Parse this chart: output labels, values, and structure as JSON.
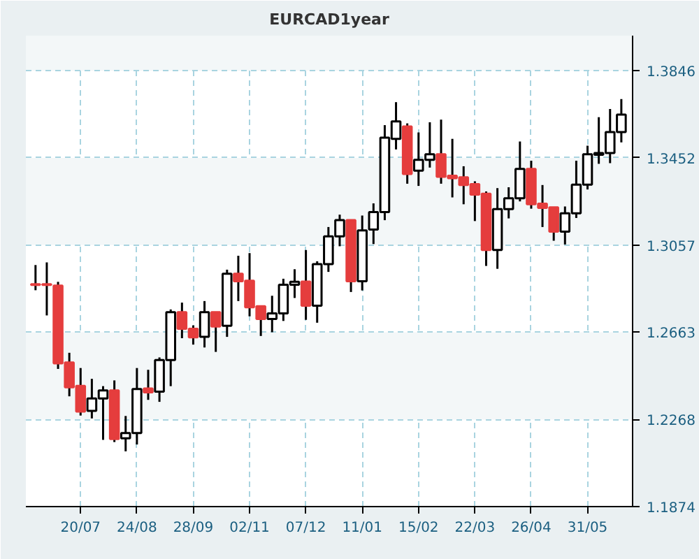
{
  "chart_data": {
    "type": "candlestick",
    "title": "EURCAD1year",
    "x": [
      "2009-06-22",
      "2009-06-29",
      "2009-07-06",
      "2009-07-13",
      "2009-07-20",
      "2009-07-27",
      "2009-08-03",
      "2009-08-10",
      "2009-08-17",
      "2009-08-24",
      "2009-08-31",
      "2009-09-07",
      "2009-09-14",
      "2009-09-21",
      "2009-09-28",
      "2009-10-05",
      "2009-10-12",
      "2009-10-19",
      "2009-10-26",
      "2009-11-02",
      "2009-11-09",
      "2009-11-16",
      "2009-11-23",
      "2009-11-30",
      "2009-12-07",
      "2009-12-14",
      "2009-12-21",
      "2009-12-28",
      "2010-01-04",
      "2010-01-11",
      "2010-01-18",
      "2010-01-25",
      "2010-02-01",
      "2010-02-08",
      "2010-02-15",
      "2010-02-22",
      "2010-03-01",
      "2010-03-08",
      "2010-03-15",
      "2010-03-22",
      "2010-03-29",
      "2010-04-05",
      "2010-04-12",
      "2010-04-19",
      "2010-04-26",
      "2010-05-03",
      "2010-05-10",
      "2010-05-17",
      "2010-05-24",
      "2010-05-31",
      "2010-06-07",
      "2010-06-14",
      "2010-06-21"
    ],
    "ohlc": [
      [
        1.288,
        1.2967,
        1.2853,
        1.2877
      ],
      [
        1.288,
        1.2979,
        1.2739,
        1.2877
      ],
      [
        1.2874,
        1.2891,
        1.2497,
        1.2522
      ],
      [
        1.2526,
        1.257,
        1.2373,
        1.2414
      ],
      [
        1.242,
        1.2501,
        1.2286,
        1.2304
      ],
      [
        1.2307,
        1.2452,
        1.2273,
        1.2363
      ],
      [
        1.2363,
        1.2419,
        1.2176,
        1.24
      ],
      [
        1.24,
        1.2445,
        1.2166,
        1.218
      ],
      [
        1.2183,
        1.2284,
        1.2124,
        1.2207
      ],
      [
        1.2207,
        1.2501,
        1.2155,
        1.2406
      ],
      [
        1.2408,
        1.2493,
        1.2357,
        1.2391
      ],
      [
        1.2394,
        1.2549,
        1.2348,
        1.2537
      ],
      [
        1.2537,
        1.2766,
        1.2419,
        1.2754
      ],
      [
        1.2754,
        1.2797,
        1.2636,
        1.2679
      ],
      [
        1.2679,
        1.2694,
        1.2607,
        1.264
      ],
      [
        1.2642,
        1.2804,
        1.2594,
        1.2754
      ],
      [
        1.2754,
        1.2754,
        1.2574,
        1.2689
      ],
      [
        1.2692,
        1.2946,
        1.2642,
        1.2928
      ],
      [
        1.2928,
        1.3009,
        1.2804,
        1.2894
      ],
      [
        1.2896,
        1.3021,
        1.2735,
        1.2776
      ],
      [
        1.2781,
        1.2781,
        1.2646,
        1.2723
      ],
      [
        1.2723,
        1.2828,
        1.2663,
        1.2748
      ],
      [
        1.2748,
        1.2905,
        1.2714,
        1.2878
      ],
      [
        1.2878,
        1.2948,
        1.2818,
        1.2891
      ],
      [
        1.2892,
        1.3035,
        1.2719,
        1.2783
      ],
      [
        1.2783,
        1.2984,
        1.2706,
        1.2971
      ],
      [
        1.2971,
        1.3139,
        1.2936,
        1.3097
      ],
      [
        1.3097,
        1.3195,
        1.3052,
        1.317
      ],
      [
        1.317,
        1.317,
        1.2845,
        1.2894
      ],
      [
        1.2894,
        1.3191,
        1.2852,
        1.3124
      ],
      [
        1.3128,
        1.3246,
        1.3062,
        1.3207
      ],
      [
        1.3207,
        1.36,
        1.317,
        1.3543
      ],
      [
        1.3538,
        1.3704,
        1.349,
        1.3617
      ],
      [
        1.3594,
        1.3608,
        1.3335,
        1.3379
      ],
      [
        1.3394,
        1.3567,
        1.3325,
        1.3443
      ],
      [
        1.3443,
        1.3613,
        1.3408,
        1.3468
      ],
      [
        1.3468,
        1.3625,
        1.3335,
        1.3366
      ],
      [
        1.3371,
        1.3538,
        1.3273,
        1.336
      ],
      [
        1.3364,
        1.3414,
        1.3242,
        1.3329
      ],
      [
        1.3333,
        1.3346,
        1.3166,
        1.3286
      ],
      [
        1.329,
        1.33,
        1.2963,
        1.3035
      ],
      [
        1.3035,
        1.3315,
        1.295,
        1.322
      ],
      [
        1.322,
        1.3319,
        1.3178,
        1.3269
      ],
      [
        1.3269,
        1.3526,
        1.3255,
        1.3402
      ],
      [
        1.3402,
        1.3439,
        1.3222,
        1.3242
      ],
      [
        1.3245,
        1.3329,
        1.3139,
        1.3226
      ],
      [
        1.3228,
        1.3228,
        1.3077,
        1.3118
      ],
      [
        1.3118,
        1.3232,
        1.306,
        1.3201
      ],
      [
        1.3201,
        1.3439,
        1.318,
        1.3331
      ],
      [
        1.3331,
        1.3507,
        1.3309,
        1.3468
      ],
      [
        1.3466,
        1.3636,
        1.3425,
        1.3474
      ],
      [
        1.3474,
        1.3673,
        1.3428,
        1.3569
      ],
      [
        1.3569,
        1.3718,
        1.3522,
        1.3648
      ]
    ],
    "colors": [
      "#e53d3d",
      "#e53d3d",
      "#e53d3d",
      "#e53d3d",
      "#e53d3d",
      "#ffffff",
      "#ffffff",
      "#e53d3d",
      "#ffffff",
      "#ffffff",
      "#e53d3d",
      "#ffffff",
      "#ffffff",
      "#e53d3d",
      "#e53d3d",
      "#ffffff",
      "#e53d3d",
      "#ffffff",
      "#e53d3d",
      "#e53d3d",
      "#e53d3d",
      "#ffffff",
      "#ffffff",
      "#ffffff",
      "#e53d3d",
      "#ffffff",
      "#ffffff",
      "#ffffff",
      "#e53d3d",
      "#ffffff",
      "#ffffff",
      "#ffffff",
      "#ffffff",
      "#e53d3d",
      "#ffffff",
      "#ffffff",
      "#e53d3d",
      "#e53d3d",
      "#e53d3d",
      "#e53d3d",
      "#e53d3d",
      "#ffffff",
      "#ffffff",
      "#ffffff",
      "#e53d3d",
      "#e53d3d",
      "#e53d3d",
      "#ffffff",
      "#ffffff",
      "#ffffff",
      "#ffffff",
      "#ffffff",
      "#ffffff"
    ],
    "xlim": [
      "2009-06-16",
      "2010-06-28"
    ],
    "xticks": [
      {
        "value": "2009-07-20",
        "label": "20/07"
      },
      {
        "value": "2009-08-24",
        "label": "24/08"
      },
      {
        "value": "2009-09-28",
        "label": "28/09"
      },
      {
        "value": "2009-11-02",
        "label": "02/11"
      },
      {
        "value": "2009-12-07",
        "label": "07/12"
      },
      {
        "value": "2010-01-11",
        "label": "11/01"
      },
      {
        "value": "2010-02-15",
        "label": "15/02"
      },
      {
        "value": "2010-03-22",
        "label": "22/03"
      },
      {
        "value": "2010-04-26",
        "label": "26/04"
      },
      {
        "value": "2010-05-31",
        "label": "31/05"
      }
    ],
    "ylim": [
      1.1874,
      1.4005
    ],
    "yticks": [
      1.1874,
      1.2268,
      1.2663,
      1.3057,
      1.3452,
      1.3846
    ],
    "grid": true
  }
}
